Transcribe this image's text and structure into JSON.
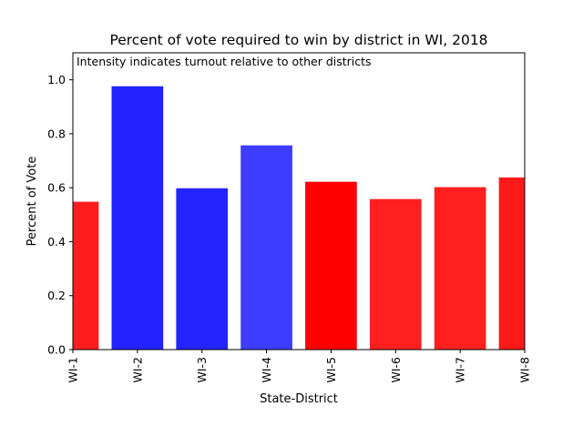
{
  "chart_data": {
    "type": "bar",
    "title": "Percent of vote required to win by district in WI, 2018",
    "annotation": "Intensity indicates turnout relative to other districts",
    "xlabel": "State-District",
    "ylabel": "Percent of Vote",
    "ylim": [
      0,
      1.1
    ],
    "yticks": [
      "0.0",
      "0.2",
      "0.4",
      "0.6",
      "0.8",
      "1.0"
    ],
    "grid": false,
    "categories": [
      "WI-1",
      "WI-2",
      "WI-3",
      "WI-4",
      "WI-5",
      "WI-6",
      "WI-7",
      "WI-8"
    ],
    "values": [
      0.548,
      0.976,
      0.598,
      0.757,
      0.622,
      0.558,
      0.602,
      0.638
    ],
    "bar_colors": [
      "#ff1c1c",
      "#2222ff",
      "#2424ff",
      "#3d3dff",
      "#ff0000",
      "#ff1f1f",
      "#ff1f1f",
      "#ff1a1a"
    ]
  }
}
